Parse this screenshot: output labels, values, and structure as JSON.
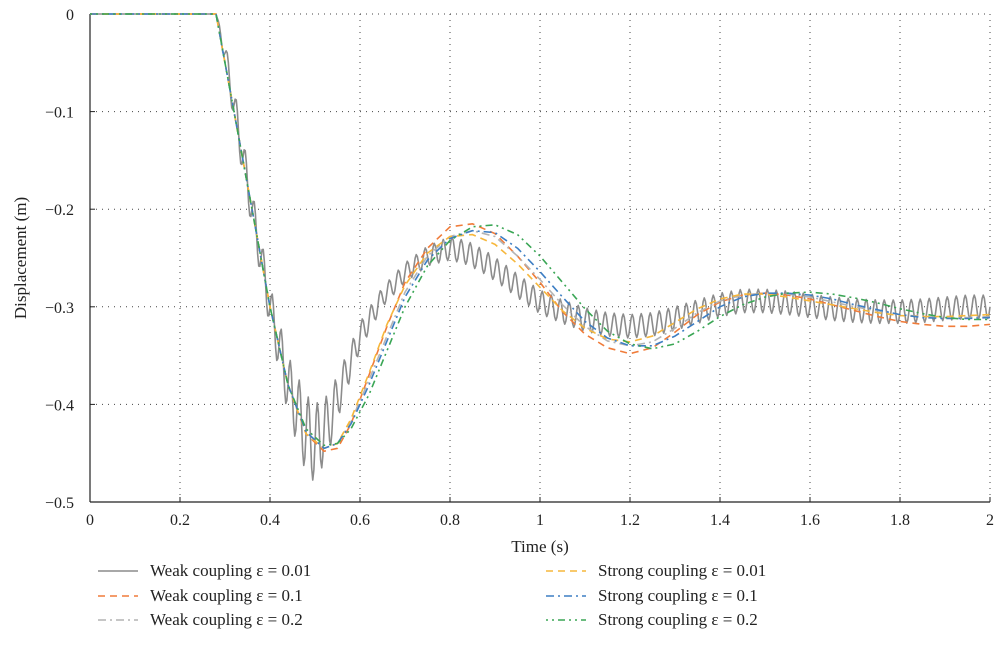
{
  "chart_data": {
    "type": "line",
    "xlabel": "Time (s)",
    "ylabel": "Displacement (m)",
    "xlim": [
      0,
      2
    ],
    "ylim": [
      -0.5,
      0
    ],
    "xticks": [
      0,
      0.2,
      0.4,
      0.6,
      0.8,
      1,
      1.2,
      1.4,
      1.6,
      1.8,
      2
    ],
    "xtick_labels": [
      "0",
      "0.2",
      "0.4",
      "0.6",
      "0.8",
      "1",
      "1.2",
      "1.4",
      "1.6",
      "1.8",
      "2"
    ],
    "yticks": [
      0,
      -0.1,
      -0.2,
      -0.3,
      -0.4,
      -0.5
    ],
    "ytick_labels": [
      "0",
      "−0.1",
      "−0.2",
      "−0.3",
      "−0.4",
      "−0.5"
    ],
    "grid": true,
    "grid_style": "dotted",
    "legend_position": "bottom",
    "series": [
      {
        "name": "Weak coupling ε = 0.01",
        "color": "#8c8c8c",
        "style": "solid",
        "x": [
          0,
          0.28,
          0.3,
          0.33,
          0.36,
          0.4,
          0.44,
          0.48,
          0.5,
          0.53,
          0.56,
          0.6,
          0.65,
          0.7,
          0.75,
          0.8,
          0.84,
          0.88,
          0.92,
          0.96,
          1.0,
          1.05,
          1.1,
          1.15,
          1.2,
          1.25,
          1.3,
          1.35,
          1.4,
          1.45,
          1.5,
          1.55,
          1.6,
          1.65,
          1.7,
          1.75,
          1.8,
          1.85,
          1.9,
          1.95,
          2.0
        ],
        "y": [
          0,
          0,
          -0.04,
          -0.12,
          -0.2,
          -0.3,
          -0.38,
          -0.43,
          -0.44,
          -0.42,
          -0.38,
          -0.33,
          -0.29,
          -0.265,
          -0.248,
          -0.24,
          -0.245,
          -0.255,
          -0.268,
          -0.282,
          -0.295,
          -0.305,
          -0.313,
          -0.318,
          -0.32,
          -0.318,
          -0.312,
          -0.305,
          -0.298,
          -0.294,
          -0.294,
          -0.296,
          -0.299,
          -0.302,
          -0.304,
          -0.305,
          -0.305,
          -0.304,
          -0.302,
          -0.3,
          -0.3
        ],
        "oscillation_amplitude": [
          0,
          0,
          0.012,
          0.02,
          0.02,
          0.022,
          0.03,
          0.04,
          0.04,
          0.03,
          0.02,
          0.014,
          0.01,
          0.01,
          0.01,
          0.012,
          0.012,
          0.012,
          0.012,
          0.012,
          0.012,
          0.012,
          0.012,
          0.012,
          0.012,
          0.012,
          0.012,
          0.012,
          0.012,
          0.012,
          0.012,
          0.012,
          0.012,
          0.012,
          0.012,
          0.012,
          0.012,
          0.012,
          0.012,
          0.012,
          0.012
        ]
      },
      {
        "name": "Weak coupling ε = 0.1",
        "color": "#f07c3a",
        "style": "dashed",
        "x": [
          0,
          0.28,
          0.32,
          0.36,
          0.4,
          0.44,
          0.48,
          0.52,
          0.55,
          0.58,
          0.62,
          0.66,
          0.7,
          0.75,
          0.8,
          0.85,
          0.9,
          0.95,
          1.0,
          1.05,
          1.1,
          1.15,
          1.2,
          1.25,
          1.3,
          1.35,
          1.4,
          1.45,
          1.5,
          1.55,
          1.6,
          1.65,
          1.7,
          1.75,
          1.8,
          1.85,
          1.9,
          1.95,
          2.0
        ],
        "y": [
          0,
          0,
          -0.1,
          -0.2,
          -0.3,
          -0.38,
          -0.43,
          -0.448,
          -0.445,
          -0.42,
          -0.37,
          -0.32,
          -0.275,
          -0.24,
          -0.218,
          -0.215,
          -0.225,
          -0.248,
          -0.275,
          -0.305,
          -0.328,
          -0.342,
          -0.348,
          -0.342,
          -0.326,
          -0.308,
          -0.295,
          -0.288,
          -0.286,
          -0.288,
          -0.292,
          -0.298,
          -0.304,
          -0.31,
          -0.315,
          -0.318,
          -0.32,
          -0.32,
          -0.318
        ]
      },
      {
        "name": "Weak coupling ε = 0.2",
        "color": "#b4b4b4",
        "style": "dashdot",
        "x": [
          0,
          0.28,
          0.32,
          0.36,
          0.4,
          0.44,
          0.48,
          0.52,
          0.55,
          0.58,
          0.62,
          0.66,
          0.7,
          0.75,
          0.8,
          0.85,
          0.9,
          0.95,
          1.0,
          1.05,
          1.1,
          1.15,
          1.2,
          1.25,
          1.3,
          1.35,
          1.4,
          1.45,
          1.5,
          1.55,
          1.6,
          1.65,
          1.7,
          1.75,
          1.8,
          1.85,
          1.9,
          1.95,
          2.0
        ],
        "y": [
          0,
          0,
          -0.1,
          -0.2,
          -0.3,
          -0.38,
          -0.428,
          -0.445,
          -0.44,
          -0.418,
          -0.375,
          -0.33,
          -0.285,
          -0.248,
          -0.228,
          -0.222,
          -0.228,
          -0.248,
          -0.272,
          -0.298,
          -0.32,
          -0.335,
          -0.34,
          -0.336,
          -0.322,
          -0.306,
          -0.294,
          -0.288,
          -0.286,
          -0.287,
          -0.29,
          -0.295,
          -0.3,
          -0.304,
          -0.308,
          -0.31,
          -0.311,
          -0.311,
          -0.31
        ]
      },
      {
        "name": "Strong coupling ε = 0.01",
        "color": "#f6b73c",
        "style": "dashed",
        "x": [
          0,
          0.28,
          0.32,
          0.36,
          0.4,
          0.44,
          0.48,
          0.52,
          0.55,
          0.58,
          0.62,
          0.66,
          0.7,
          0.75,
          0.8,
          0.85,
          0.9,
          0.95,
          1.0,
          1.05,
          1.1,
          1.15,
          1.2,
          1.25,
          1.3,
          1.35,
          1.4,
          1.45,
          1.5,
          1.55,
          1.6,
          1.65,
          1.7,
          1.75,
          1.8,
          1.85,
          1.9,
          1.95,
          2.0
        ],
        "y": [
          0,
          0,
          -0.1,
          -0.2,
          -0.3,
          -0.38,
          -0.43,
          -0.445,
          -0.44,
          -0.415,
          -0.368,
          -0.318,
          -0.278,
          -0.245,
          -0.228,
          -0.226,
          -0.236,
          -0.256,
          -0.28,
          -0.304,
          -0.322,
          -0.333,
          -0.336,
          -0.33,
          -0.316,
          -0.302,
          -0.292,
          -0.287,
          -0.287,
          -0.29,
          -0.294,
          -0.298,
          -0.302,
          -0.306,
          -0.309,
          -0.31,
          -0.31,
          -0.309,
          -0.308
        ]
      },
      {
        "name": "Strong coupling ε = 0.1",
        "color": "#3d7ec4",
        "style": "dashdot",
        "x": [
          0,
          0.28,
          0.32,
          0.36,
          0.4,
          0.44,
          0.48,
          0.52,
          0.55,
          0.58,
          0.62,
          0.66,
          0.7,
          0.75,
          0.8,
          0.85,
          0.9,
          0.95,
          1.0,
          1.05,
          1.1,
          1.15,
          1.2,
          1.25,
          1.3,
          1.35,
          1.4,
          1.45,
          1.5,
          1.55,
          1.6,
          1.65,
          1.7,
          1.75,
          1.8,
          1.85,
          1.9,
          1.95,
          2.0
        ],
        "y": [
          0,
          0,
          -0.1,
          -0.2,
          -0.3,
          -0.38,
          -0.428,
          -0.445,
          -0.44,
          -0.42,
          -0.38,
          -0.335,
          -0.29,
          -0.252,
          -0.23,
          -0.222,
          -0.224,
          -0.24,
          -0.264,
          -0.29,
          -0.315,
          -0.332,
          -0.34,
          -0.34,
          -0.33,
          -0.315,
          -0.3,
          -0.29,
          -0.286,
          -0.286,
          -0.288,
          -0.292,
          -0.298,
          -0.303,
          -0.308,
          -0.311,
          -0.312,
          -0.312,
          -0.311
        ]
      },
      {
        "name": "Strong coupling ε = 0.2",
        "color": "#3aa655",
        "style": "dotdash",
        "x": [
          0,
          0.28,
          0.32,
          0.36,
          0.4,
          0.44,
          0.48,
          0.52,
          0.55,
          0.58,
          0.62,
          0.66,
          0.7,
          0.75,
          0.8,
          0.85,
          0.9,
          0.95,
          1.0,
          1.05,
          1.1,
          1.15,
          1.2,
          1.25,
          1.3,
          1.35,
          1.4,
          1.45,
          1.5,
          1.55,
          1.6,
          1.65,
          1.7,
          1.75,
          1.8,
          1.85,
          1.9,
          1.95,
          2.0
        ],
        "y": [
          0,
          0,
          -0.1,
          -0.2,
          -0.3,
          -0.38,
          -0.425,
          -0.442,
          -0.44,
          -0.425,
          -0.39,
          -0.345,
          -0.3,
          -0.258,
          -0.232,
          -0.218,
          -0.216,
          -0.226,
          -0.248,
          -0.275,
          -0.302,
          -0.325,
          -0.338,
          -0.343,
          -0.338,
          -0.325,
          -0.31,
          -0.298,
          -0.29,
          -0.286,
          -0.285,
          -0.287,
          -0.291,
          -0.296,
          -0.302,
          -0.307,
          -0.311,
          -0.313,
          -0.313
        ]
      }
    ]
  }
}
